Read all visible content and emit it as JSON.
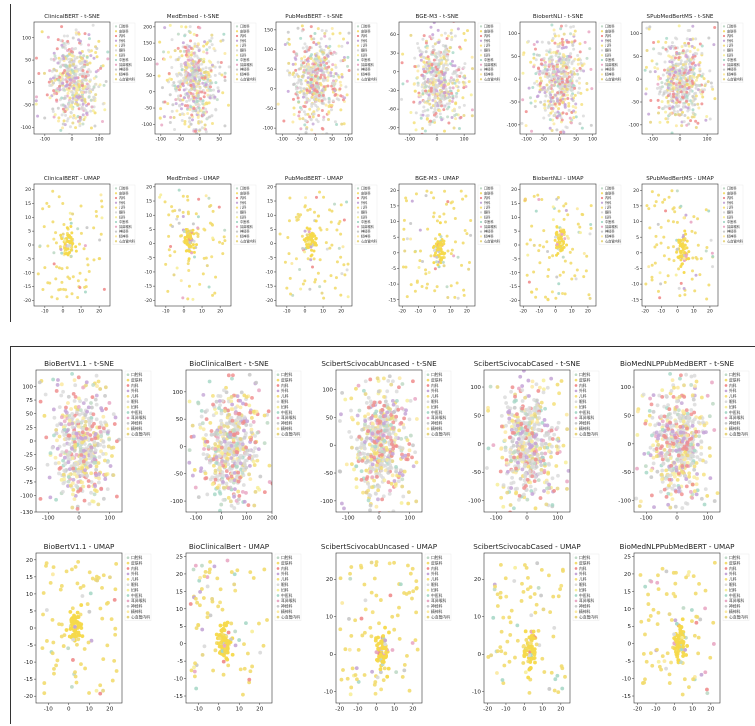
{
  "figure": {
    "panels": [
      {
        "title": "ClinicalBERT - t-SNE",
        "kind": "tsne",
        "x_ticks": [
          -100,
          0,
          100
        ],
        "y_ticks": [
          -100,
          -50,
          0,
          50,
          100
        ],
        "xlim": [
          -140,
          140
        ],
        "ylim": [
          -115,
          135
        ]
      },
      {
        "title": "MedEmbed - t-SNE",
        "kind": "tsne",
        "x_ticks": [
          -100,
          -50,
          0,
          50
        ],
        "y_ticks": [
          -100,
          -50,
          0,
          50,
          100,
          150,
          200
        ],
        "xlim": [
          -115,
          80
        ],
        "ylim": [
          -130,
          215
        ]
      },
      {
        "title": "PubMedBERT - t-SNE",
        "kind": "tsne",
        "x_ticks": [
          -100,
          -50,
          0,
          50,
          100
        ],
        "y_ticks": [
          -100,
          -50,
          0,
          50,
          100,
          150
        ],
        "xlim": [
          -120,
          110
        ],
        "ylim": [
          -115,
          170
        ]
      },
      {
        "title": "BGE-M3 - t-SNE",
        "kind": "tsne",
        "x_ticks": [
          -100,
          0,
          100
        ],
        "y_ticks": [
          -90,
          -60,
          -30,
          0,
          30,
          60
        ],
        "xlim": [
          -140,
          140
        ],
        "ylim": [
          -100,
          80
        ]
      },
      {
        "title": "BiobertNLI - t-SNE",
        "kind": "tsne",
        "x_ticks": [
          -100,
          -50,
          0,
          50,
          100
        ],
        "y_ticks": [
          -100,
          -50,
          0,
          50,
          100
        ],
        "xlim": [
          -120,
          110
        ],
        "ylim": [
          -120,
          125
        ]
      },
      {
        "title": "SPubMedBertMS - t-SNE",
        "kind": "tsne",
        "x_ticks": [
          -100,
          0,
          100
        ],
        "y_ticks": [
          -100,
          -50,
          0,
          50,
          100
        ],
        "xlim": [
          -140,
          140
        ],
        "ylim": [
          -120,
          125
        ]
      },
      {
        "title": "ClinicalBERT - UMAP",
        "kind": "umap",
        "x_ticks": [
          -10,
          0,
          10,
          20
        ],
        "y_ticks": [
          -20,
          -15,
          -10,
          -5,
          0,
          5,
          10,
          15,
          20
        ],
        "xlim": [
          -16,
          26
        ],
        "ylim": [
          -22,
          22
        ]
      },
      {
        "title": "MedEmbed - UMAP",
        "kind": "umap",
        "x_ticks": [
          -10,
          0,
          10,
          20
        ],
        "y_ticks": [
          -20,
          -15,
          -10,
          -5,
          0,
          5,
          10,
          15,
          20
        ],
        "xlim": [
          -16,
          26
        ],
        "ylim": [
          -22,
          21
        ]
      },
      {
        "title": "PubMedBERT - UMAP",
        "kind": "umap",
        "x_ticks": [
          -10,
          0,
          10,
          20
        ],
        "y_ticks": [
          -20,
          -15,
          -10,
          -5,
          0,
          5,
          10,
          15,
          20
        ],
        "xlim": [
          -16,
          26
        ],
        "ylim": [
          -22,
          21
        ]
      },
      {
        "title": "BGE-M3 - UMAP",
        "kind": "umap",
        "x_ticks": [
          -20,
          -10,
          0,
          10,
          20
        ],
        "y_ticks": [
          -15,
          -10,
          -5,
          0,
          5,
          10,
          15,
          20
        ],
        "xlim": [
          -22,
          25
        ],
        "ylim": [
          -17,
          22
        ]
      },
      {
        "title": "BiobertNLI - UMAP",
        "kind": "umap",
        "x_ticks": [
          -20,
          -10,
          0,
          10,
          20
        ],
        "y_ticks": [
          -20,
          -15,
          -10,
          -5,
          0,
          5,
          10,
          15,
          20
        ],
        "xlim": [
          -22,
          25
        ],
        "ylim": [
          -22,
          22
        ]
      },
      {
        "title": "SPubMedBertMS - UMAP",
        "kind": "umap",
        "x_ticks": [
          -20,
          -10,
          0,
          10,
          20
        ],
        "y_ticks": [
          -15,
          -10,
          -5,
          0,
          5,
          10,
          15,
          20
        ],
        "xlim": [
          -22,
          25
        ],
        "ylim": [
          -17,
          22
        ]
      },
      {
        "title": "BioBertV1.1 - t-SNE",
        "kind": "tsne",
        "x_ticks": [
          -100,
          0,
          100
        ],
        "y_ticks": [
          -130,
          -100,
          -75,
          -50,
          -25,
          0,
          25,
          50,
          75,
          100
        ],
        "xlim": [
          -140,
          140
        ],
        "ylim": [
          -130,
          130
        ]
      },
      {
        "title": "BioClinicalBert - t-SNE",
        "kind": "tsne",
        "x_ticks": [
          -100,
          0,
          100,
          200
        ],
        "y_ticks": [
          -100,
          -50,
          0,
          50,
          100
        ],
        "xlim": [
          -140,
          200
        ],
        "ylim": [
          -120,
          140
        ]
      },
      {
        "title": "ScibertScivocabUncased - t-SNE",
        "kind": "tsne",
        "x_ticks": [
          -100,
          0,
          100
        ],
        "y_ticks": [
          -100,
          -50,
          0,
          50,
          100
        ],
        "xlim": [
          -140,
          140
        ],
        "ylim": [
          -120,
          135
        ]
      },
      {
        "title": "ScibertScivocabCased - t-SNE",
        "kind": "tsne",
        "x_ticks": [
          -100,
          0,
          100
        ],
        "y_ticks": [
          -100,
          -50,
          0,
          50,
          100
        ],
        "xlim": [
          -140,
          140
        ],
        "ylim": [
          -120,
          130
        ]
      },
      {
        "title": "BioMedNLPPubMedBERT - t-SNE",
        "kind": "tsne",
        "x_ticks": [
          -100,
          0,
          100
        ],
        "y_ticks": [
          -100,
          -50,
          0,
          50,
          100
        ],
        "xlim": [
          -140,
          140
        ],
        "ylim": [
          -120,
          130
        ]
      },
      {
        "title": "BioBertV1.1 - UMAP",
        "kind": "umap",
        "x_ticks": [
          -10,
          0,
          10,
          20
        ],
        "y_ticks": [
          -20,
          -15,
          -10,
          -5,
          0,
          5,
          10,
          15,
          20
        ],
        "xlim": [
          -16,
          26
        ],
        "ylim": [
          -22,
          22
        ]
      },
      {
        "title": "BioClinicalBert - UMAP",
        "kind": "umap",
        "x_ticks": [
          -10,
          0,
          10,
          20
        ],
        "y_ticks": [
          -15,
          -10,
          -5,
          0,
          5,
          10,
          15,
          20,
          25
        ],
        "xlim": [
          -16,
          26
        ],
        "ylim": [
          -17,
          26
        ]
      },
      {
        "title": "ScibertScivocabUncased - UMAP",
        "kind": "umap",
        "x_ticks": [
          -20,
          -10,
          0,
          10,
          20
        ],
        "y_ticks": [
          -10,
          0,
          10,
          20
        ],
        "xlim": [
          -22,
          25
        ],
        "ylim": [
          -13,
          27
        ]
      },
      {
        "title": "ScibertScivocabCased - UMAP",
        "kind": "umap",
        "x_ticks": [
          -20,
          -10,
          0,
          10,
          20
        ],
        "y_ticks": [
          -10,
          0,
          10,
          20
        ],
        "xlim": [
          -22,
          25
        ],
        "ylim": [
          -13,
          27
        ]
      },
      {
        "title": "BioMedNLPPubMedBERT - UMAP",
        "kind": "umap",
        "x_ticks": [
          -20,
          -10,
          0,
          10,
          20
        ],
        "y_ticks": [
          -15,
          -10,
          -5,
          0,
          5,
          10,
          15,
          20,
          25
        ],
        "xlim": [
          -22,
          25
        ],
        "ylim": [
          -17,
          26
        ]
      }
    ],
    "legend_entries": [
      "口腔科",
      "皮肤科",
      "内科",
      "外科",
      "儿科",
      "眼科",
      "妇科",
      "中医科",
      "耳鼻喉科",
      "神经科",
      "精神科",
      "心血管内科"
    ],
    "series_colors": [
      "#bfd9c6",
      "#f2dc6f",
      "#f08c8c",
      "#c4a6d6",
      "#f5e07a",
      "#d9d9d9",
      "#f7ee9a",
      "#a8d8c8",
      "#e9a8c4",
      "#c8c8c8",
      "#fbe9a0",
      "#e6d47f"
    ],
    "colors": {
      "background": "#ffffff",
      "axis": "#333333",
      "rule": "#333333"
    }
  },
  "chart_data": {
    "type": "scatter",
    "description_units": "t-SNE and UMAP embedding coordinates",
    "series_names": [
      "口腔科",
      "皮肤科",
      "内科",
      "外科",
      "儿科",
      "眼科",
      "妇科",
      "中医科",
      "耳鼻喉科",
      "神经科",
      "精神科",
      "心血管内科"
    ],
    "tsne_cluster": {
      "center": [
        0,
        0
      ],
      "spread": "dense central blob with scattered outliers, approx range -120..120"
    },
    "umap_cluster": {
      "center": [
        5,
        2
      ],
      "spread": "small dense yellow core near origin with sparse scatter approx -20..25"
    }
  }
}
